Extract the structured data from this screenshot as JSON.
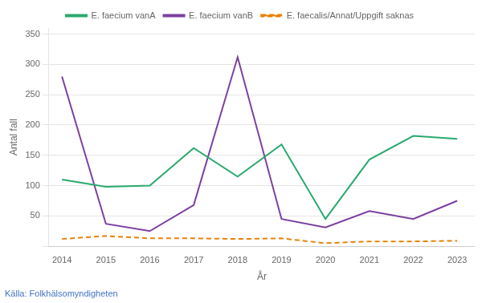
{
  "chart_data": {
    "type": "line",
    "x": [
      2014,
      2015,
      2016,
      2017,
      2018,
      2019,
      2020,
      2021,
      2022,
      2023
    ],
    "series": [
      {
        "name": "E. faecium vanA",
        "color": "#2aaa6e",
        "line_style": "solid",
        "values": [
          110,
          98,
          100,
          162,
          115,
          168,
          45,
          143,
          182,
          177
        ]
      },
      {
        "name": "E. faecium vanB",
        "color": "#7b3fa0",
        "line_style": "solid",
        "values": [
          280,
          37,
          25,
          68,
          312,
          45,
          31,
          58,
          45,
          75
        ]
      },
      {
        "name": "E. faecalis/Annat/Uppgift saknas",
        "color": "#e8820a",
        "line_style": "dashed",
        "values": [
          12,
          17,
          13,
          13,
          12,
          13,
          5,
          8,
          8,
          9
        ]
      }
    ],
    "x_label": "År",
    "y_label": "Antal fall",
    "xlim": [
      2013.7,
      2023.4
    ],
    "xticks": [
      2014,
      2015,
      2016,
      2017,
      2018,
      2019,
      2020,
      2021,
      2022,
      2023
    ],
    "ylim": [
      0,
      360
    ],
    "yticks": [
      {
        "value": 0,
        "label": ""
      },
      50,
      100,
      150,
      200,
      250,
      300,
      350
    ],
    "grid": "y",
    "legend": "top",
    "annotations": [
      {
        "text": "Källa: Folkhälsomyndigheten",
        "color": "#4472c4"
      }
    ]
  }
}
